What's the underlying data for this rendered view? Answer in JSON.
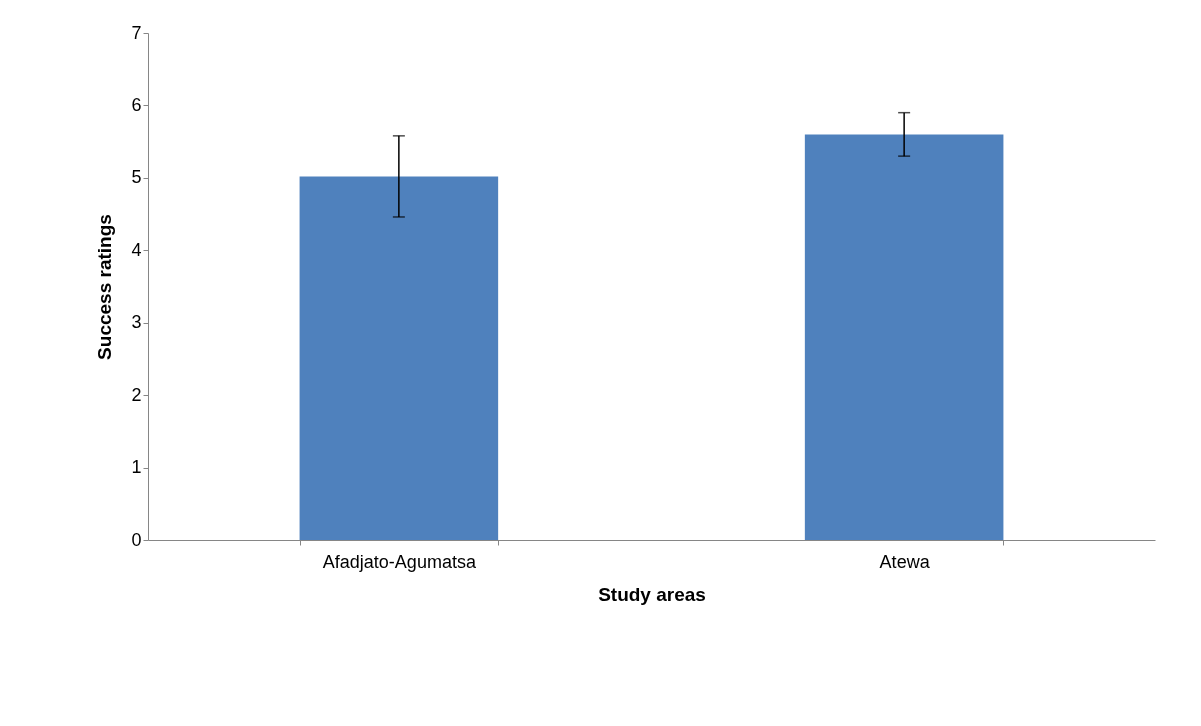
{
  "chart_data": {
    "type": "bar",
    "xlabel": "Study areas",
    "ylabel": "Success ratings",
    "categories": [
      "Afadjato-Agumatsa",
      "Atewa"
    ],
    "values": [
      5.02,
      5.6
    ],
    "errors": [
      [
        4.46,
        5.58
      ],
      0.3
    ],
    "color": "#4f81bd",
    "ylim": [
      0,
      7
    ],
    "yticks": [
      0,
      1,
      2,
      3,
      4,
      5,
      6,
      7
    ],
    "grid": false
  }
}
